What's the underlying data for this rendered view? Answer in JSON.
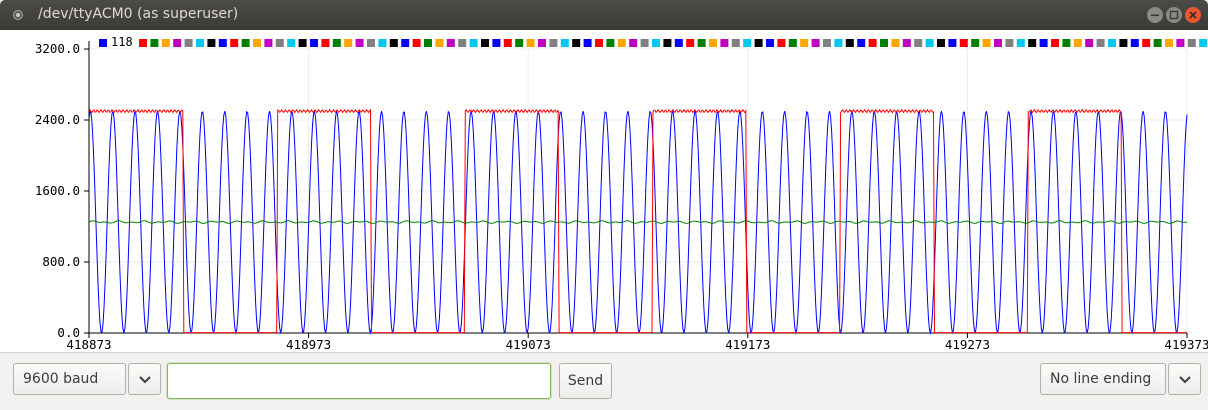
{
  "window": {
    "title": "/dev/ttyACM0 (as superuser)"
  },
  "chart_data": {
    "type": "line",
    "title": "",
    "xlabel": "",
    "ylabel": "",
    "ylim": [
      0,
      3200
    ],
    "xlim": [
      418873,
      419373
    ],
    "y_ticks": [
      "0.0",
      "800.0",
      "1600.0",
      "2400.0",
      "3200.0"
    ],
    "x_ticks": [
      "418873",
      "418973",
      "419073",
      "419173",
      "419273",
      "419373"
    ],
    "legend_value": "118",
    "legend_colors": [
      "#0000ff",
      "#ff0000",
      "#008000",
      "#ffa500",
      "#c000c0",
      "#808080",
      "#00c8f0",
      "#000000"
    ],
    "grid": true,
    "series": [
      {
        "color": "#0000ff",
        "kind": "sine",
        "min": 0,
        "max": 2500,
        "period": 10.2,
        "phase": 4.5
      },
      {
        "color": "#ff0000",
        "kind": "square",
        "low": 0,
        "high": 2500,
        "period": 85.5,
        "high_fraction": 0.5,
        "start_x": 418873
      },
      {
        "color": "#008000",
        "kind": "flat",
        "value": 1250,
        "noise": 15
      }
    ]
  },
  "controls": {
    "baud": "9600 baud",
    "message_input": "",
    "send_label": "Send",
    "line_ending": "No line ending"
  }
}
